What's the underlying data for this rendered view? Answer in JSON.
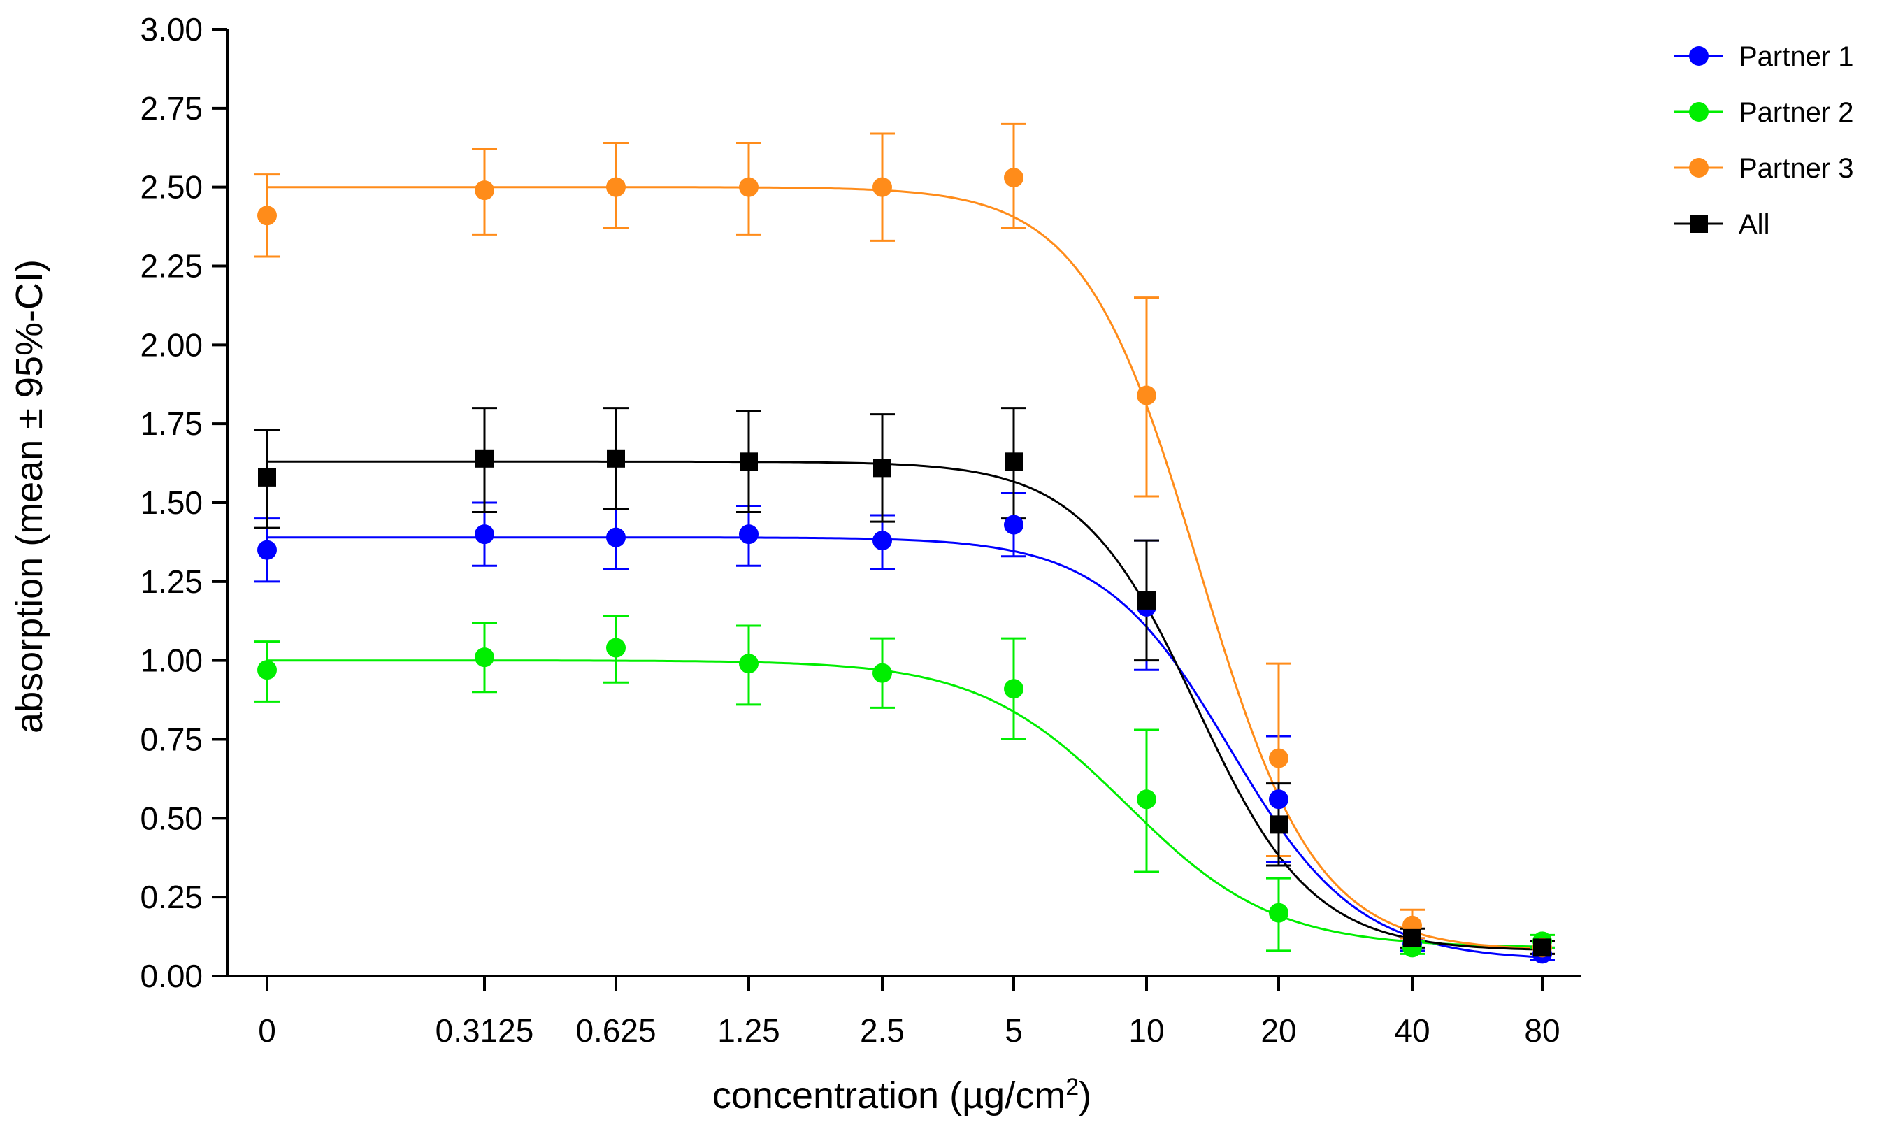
{
  "chart_data": {
    "type": "line",
    "title": "",
    "xlabel": "concentration (µg/cm",
    "xlabel_sup": "2",
    "xlabel_close": ")",
    "ylabel": "absorption (mean ± 95%-CI)",
    "ylim": [
      0,
      3
    ],
    "yticks": [
      "0.00",
      "0.25",
      "0.50",
      "0.75",
      "1.00",
      "1.25",
      "1.50",
      "1.75",
      "2.00",
      "2.25",
      "2.50",
      "2.75",
      "3.00"
    ],
    "categories": [
      "0",
      "0.3125",
      "0.625",
      "1.25",
      "2.5",
      "5",
      "10",
      "20",
      "40",
      "80"
    ],
    "legend_position": "top-right",
    "series": [
      {
        "name": "Partner 1",
        "color": "#0000ff",
        "marker": "circle",
        "values": [
          1.35,
          1.4,
          1.39,
          1.4,
          1.38,
          1.43,
          1.17,
          0.56,
          0.1,
          0.07
        ],
        "ci_low": [
          1.25,
          1.3,
          1.29,
          1.3,
          1.29,
          1.33,
          0.97,
          0.36,
          0.08,
          0.05
        ],
        "ci_high": [
          1.45,
          1.5,
          1.48,
          1.49,
          1.46,
          1.53,
          1.38,
          0.76,
          0.12,
          0.09
        ],
        "fit": {
          "bottom": 0.05,
          "top": 1.39,
          "ec50": 15.5,
          "hill": 3.0
        }
      },
      {
        "name": "Partner 2",
        "color": "#00ee00",
        "marker": "circle",
        "values": [
          0.97,
          1.01,
          1.04,
          0.99,
          0.96,
          0.91,
          0.56,
          0.2,
          0.09,
          0.11
        ],
        "ci_low": [
          0.87,
          0.9,
          0.93,
          0.86,
          0.85,
          0.75,
          0.33,
          0.08,
          0.07,
          0.09
        ],
        "ci_high": [
          1.06,
          1.12,
          1.14,
          1.11,
          1.07,
          1.07,
          0.78,
          0.31,
          0.11,
          0.13
        ],
        "fit": {
          "bottom": 0.09,
          "top": 1.0,
          "ec50": 9.0,
          "hill": 2.6
        }
      },
      {
        "name": "Partner 3",
        "color": "#ff8c1a",
        "marker": "circle",
        "values": [
          2.41,
          2.49,
          2.5,
          2.5,
          2.5,
          2.53,
          1.84,
          0.69,
          0.16,
          0.09
        ],
        "ci_low": [
          2.28,
          2.35,
          2.37,
          2.35,
          2.33,
          2.37,
          1.52,
          0.38,
          0.12,
          0.07
        ],
        "ci_high": [
          2.54,
          2.62,
          2.64,
          2.64,
          2.67,
          2.7,
          2.15,
          0.99,
          0.21,
          0.11
        ],
        "fit": {
          "bottom": 0.08,
          "top": 2.5,
          "ec50": 13.2,
          "hill": 3.3
        }
      },
      {
        "name": "All",
        "color": "#000000",
        "marker": "square",
        "values": [
          1.58,
          1.64,
          1.64,
          1.63,
          1.61,
          1.63,
          1.19,
          0.48,
          0.12,
          0.09
        ],
        "ci_low": [
          1.42,
          1.47,
          1.48,
          1.47,
          1.44,
          1.45,
          1.0,
          0.35,
          0.09,
          0.07
        ],
        "ci_high": [
          1.73,
          1.8,
          1.8,
          1.79,
          1.78,
          1.8,
          1.38,
          0.61,
          0.15,
          0.11
        ],
        "fit": {
          "bottom": 0.08,
          "top": 1.63,
          "ec50": 13.0,
          "hill": 3.3
        }
      }
    ]
  }
}
